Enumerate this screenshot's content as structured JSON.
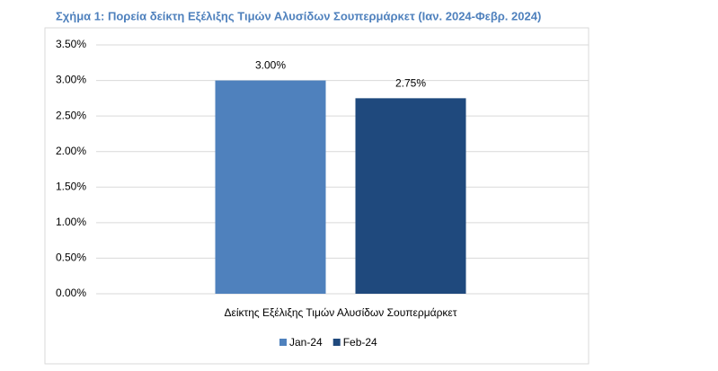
{
  "chart_data": {
    "type": "bar",
    "title": "Σχήμα 1: Πορεία δείκτη Εξέλιξης Τιμών Αλυσίδων Σουπερμάρκετ (Ιαν. 2024-Φεβρ. 2024)",
    "categories": [
      "Δείκτης Εξέλιξης Τιμών Αλυσίδων Σουπερμάρκετ"
    ],
    "series": [
      {
        "name": "Jan-24",
        "color": "#4f81bd",
        "values": [
          3.0
        ],
        "value_labels": [
          "3.00%"
        ]
      },
      {
        "name": "Feb-24",
        "color": "#1f497d",
        "values": [
          2.75
        ],
        "value_labels": [
          "2.75%"
        ]
      }
    ],
    "ylim": [
      0,
      3.5
    ],
    "yticks": [
      {
        "value": 0,
        "label": "0.00%"
      },
      {
        "value": 0.5,
        "label": "0.50%"
      },
      {
        "value": 1,
        "label": "1.00%"
      },
      {
        "value": 1.5,
        "label": "1.50%"
      },
      {
        "value": 2,
        "label": "2.00%"
      },
      {
        "value": 2.5,
        "label": "2.50%"
      },
      {
        "value": 3,
        "label": "3.00%"
      },
      {
        "value": 3.5,
        "label": "3.50%"
      }
    ],
    "grid": true,
    "legend": "bottom"
  }
}
